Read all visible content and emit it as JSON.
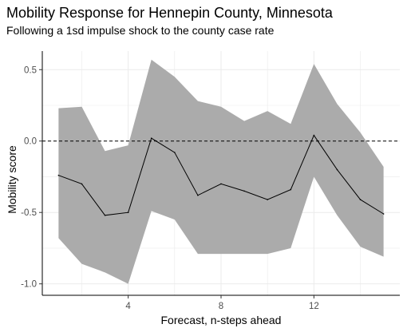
{
  "chart_data": {
    "type": "line",
    "title": "Mobility Response for Hennepin County, Minnesota",
    "subtitle": "Following a 1sd impulse shock to the county case rate",
    "xlabel": "Forecast, n-steps ahead",
    "ylabel": "Mobility score",
    "xlim": [
      0.3,
      15.7
    ],
    "ylim": [
      -1.08,
      0.63
    ],
    "x_ticks": [
      4,
      8,
      12
    ],
    "y_ticks": [
      -1.0,
      -0.5,
      0.0,
      0.5
    ],
    "x_tick_labels": [
      "4",
      "8",
      "12"
    ],
    "y_tick_labels": [
      "-1.0",
      "-0.5",
      "0.0",
      "0.5"
    ],
    "reference_line": {
      "y": 0,
      "style": "dashed"
    },
    "grid": true,
    "colors": {
      "band": "#ababab",
      "line": "#000000",
      "grid": "#ebebeb"
    },
    "x": [
      1,
      2,
      3,
      4,
      5,
      6,
      7,
      8,
      9,
      10,
      11,
      12,
      13,
      14,
      15
    ],
    "series": [
      {
        "values": [
          -0.24,
          -0.3,
          -0.52,
          -0.5,
          0.02,
          -0.08,
          -0.38,
          -0.3,
          -0.35,
          -0.41,
          -0.34,
          0.04,
          -0.2,
          -0.41,
          -0.51
        ]
      }
    ],
    "band": {
      "lower": [
        -0.68,
        -0.86,
        -0.92,
        -1.0,
        -0.49,
        -0.55,
        -0.79,
        -0.79,
        -0.79,
        -0.79,
        -0.75,
        -0.25,
        -0.52,
        -0.74,
        -0.81
      ],
      "upper": [
        0.23,
        0.24,
        -0.07,
        -0.03,
        0.57,
        0.45,
        0.28,
        0.24,
        0.14,
        0.21,
        0.12,
        0.54,
        0.26,
        0.06,
        -0.18
      ]
    }
  }
}
